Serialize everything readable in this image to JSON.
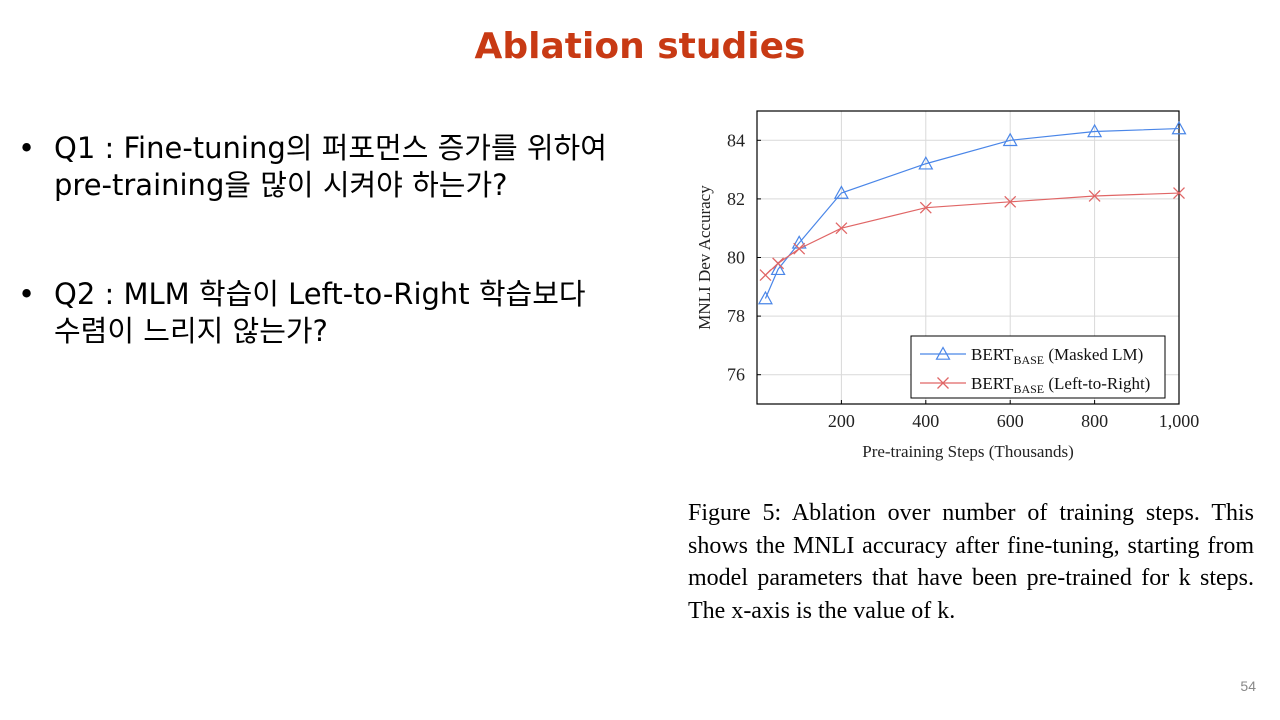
{
  "slide": {
    "title": "Ablation studies",
    "page_number": "54",
    "bullets": [
      {
        "marker": "•",
        "text": "Q1 : Fine-tuning의 퍼포먼스 증가를 위하여 pre-training을 많이 시켜야 하는가?"
      },
      {
        "marker": "•",
        "text": "Q2 : MLM 학습이 Left-to-Right 학습보다 수렴이 느리지 않는가?"
      }
    ],
    "caption": "Figure 5: Ablation over number of training steps. This shows the MNLI accuracy after fine-tuning, starting from model parameters that have been pre-trained for k steps. The x-axis is the value of k."
  },
  "chart_data": {
    "type": "line",
    "xlabel": "Pre-training Steps (Thousands)",
    "ylabel": "MNLI Dev Accuracy",
    "xlim": [
      0,
      1000
    ],
    "ylim": [
      75,
      85
    ],
    "xticks": [
      200,
      400,
      600,
      800,
      1000
    ],
    "xtick_labels": [
      "200",
      "400",
      "600",
      "800",
      "1,000"
    ],
    "yticks": [
      76,
      78,
      80,
      82,
      84
    ],
    "ytick_labels": [
      "76",
      "78",
      "80",
      "82",
      "84"
    ],
    "grid": true,
    "legend_position": "bottom-right",
    "series": [
      {
        "name": "BERTBASE (Masked LM)",
        "name_main": "BERT",
        "name_sub": "BASE",
        "name_rest": " (Masked LM)",
        "color": "#4a86e8",
        "marker": "triangle",
        "x": [
          20,
          50,
          100,
          200,
          400,
          600,
          800,
          1000
        ],
        "y": [
          78.6,
          79.6,
          80.5,
          82.2,
          83.2,
          84.0,
          84.3,
          84.4
        ]
      },
      {
        "name": "BERTBASE (Left-to-Right)",
        "name_main": "BERT",
        "name_sub": "BASE",
        "name_rest": " (Left-to-Right)",
        "color": "#e06666",
        "marker": "x",
        "x": [
          20,
          50,
          100,
          200,
          400,
          600,
          800,
          1000
        ],
        "y": [
          79.4,
          79.8,
          80.3,
          81.0,
          81.7,
          81.9,
          82.1,
          82.2
        ]
      }
    ]
  }
}
